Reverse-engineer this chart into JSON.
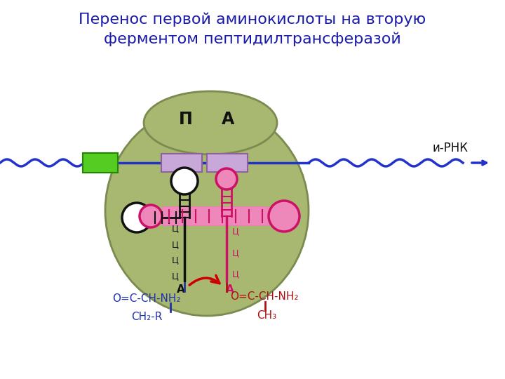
{
  "title_line1": "Перенос первой аминокислоты на вторую",
  "title_line2": "ферментом пептидилтрансферазой",
  "title_color": "#1a1aaa",
  "title_fontsize": 16,
  "bg_color": "#ffffff",
  "ribosome_color": "#a8b870",
  "ribosome_outline": "#7a8a50",
  "mrna_color": "#2233cc",
  "mrna_label": "и-РНК",
  "p_site_label": "П",
  "a_site_label": "А",
  "codon_p_color": "#c8a8d8",
  "codon_a_color": "#c8a8d8",
  "trna_black_color": "#111111",
  "trna_pink_color": "#cc1166",
  "trna_pink_fill": "#ee88bb",
  "green_rect_color": "#55cc22",
  "amino1_text": "O=C-CH-NH₂",
  "amino1_sub": "CH₂-R",
  "amino1_color": "#2233aa",
  "amino2_text": "O=C-CH-NH₂",
  "amino2_sub": "CH₃",
  "amino2_color": "#aa1111",
  "arrow_color": "#cc0000",
  "cca_label_left": "А",
  "cca_label_right": "А",
  "codon_labels_left": [
    "Ц",
    "Ц",
    "Ц",
    "Ц"
  ],
  "codon_labels_right": [
    "Ц",
    "Ц",
    "Ц"
  ]
}
